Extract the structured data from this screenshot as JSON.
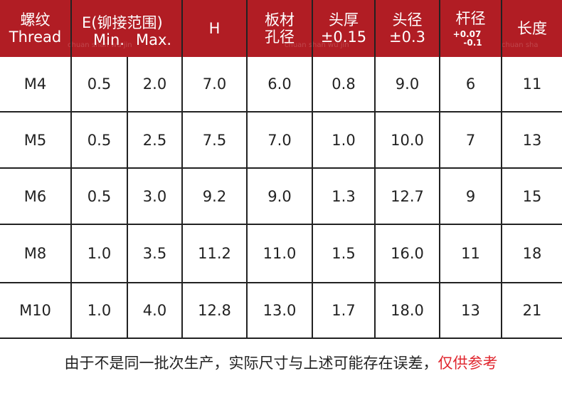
{
  "header": {
    "thread_cn": "螺纹",
    "thread_en": "Thread",
    "e_range": "E(铆接范围)",
    "min": "Min.",
    "max": "Max.",
    "h": "H",
    "hole_1": "板材",
    "hole_2": "孔径",
    "head_thick_1": "头厚",
    "head_thick_2": "±0.15",
    "head_dia_1": "头径",
    "head_dia_2": "±0.3",
    "rod_1": "杆径",
    "rod_tol_plus": "+0.07",
    "rod_tol_minus": "-0.1",
    "length": "长度"
  },
  "rows": [
    {
      "thread": "M4",
      "min": "0.5",
      "max": "2.0",
      "h": "7.0",
      "hole": "6.0",
      "head_thick": "0.8",
      "head_dia": "9.0",
      "rod": "6",
      "length": "11"
    },
    {
      "thread": "M5",
      "min": "0.5",
      "max": "2.5",
      "h": "7.5",
      "hole": "7.0",
      "head_thick": "1.0",
      "head_dia": "10.0",
      "rod": "7",
      "length": "13"
    },
    {
      "thread": "M6",
      "min": "0.5",
      "max": "3.0",
      "h": "9.2",
      "hole": "9.0",
      "head_thick": "1.3",
      "head_dia": "12.7",
      "rod": "9",
      "length": "15"
    },
    {
      "thread": "M8",
      "min": "1.0",
      "max": "3.5",
      "h": "11.2",
      "hole": "11.0",
      "head_thick": "1.5",
      "head_dia": "16.0",
      "rod": "11",
      "length": "18"
    },
    {
      "thread": "M10",
      "min": "1.0",
      "max": "4.0",
      "h": "12.8",
      "hole": "13.0",
      "head_thick": "1.7",
      "head_dia": "18.0",
      "rod": "13",
      "length": "21"
    }
  ],
  "note": {
    "main": "由于不是同一批次生产，实际尺寸与上述可能存在误差，",
    "highlight": "仅供参考"
  },
  "watermark": "chuan shan wu jin",
  "colors": {
    "header_bg": "#b11d24",
    "grid": "#222222",
    "note_highlight": "#e0262e"
  }
}
